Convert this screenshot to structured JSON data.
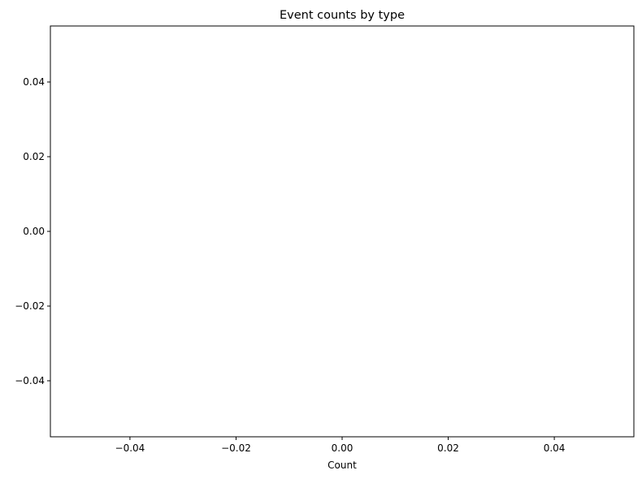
{
  "chart_data": {
    "type": "bar",
    "orientation": "horizontal",
    "title": "Event counts by type",
    "xlabel": "Count",
    "ylabel": "",
    "categories": [],
    "values": [],
    "xlim": [
      -0.055,
      0.055
    ],
    "ylim": [
      -0.055,
      0.055
    ],
    "xticks": [
      -0.04,
      -0.02,
      0.0,
      0.02,
      0.04
    ],
    "xtick_labels": [
      "−0.04",
      "−0.02",
      "0.00",
      "0.02",
      "0.04"
    ],
    "yticks": [
      -0.04,
      -0.02,
      0.0,
      0.02,
      0.04
    ],
    "ytick_labels": [
      "−0.04",
      "−0.02",
      "0.00",
      "0.02",
      "0.04"
    ],
    "grid": false,
    "colors": {
      "axis": "#000000",
      "background": "#ffffff"
    }
  }
}
